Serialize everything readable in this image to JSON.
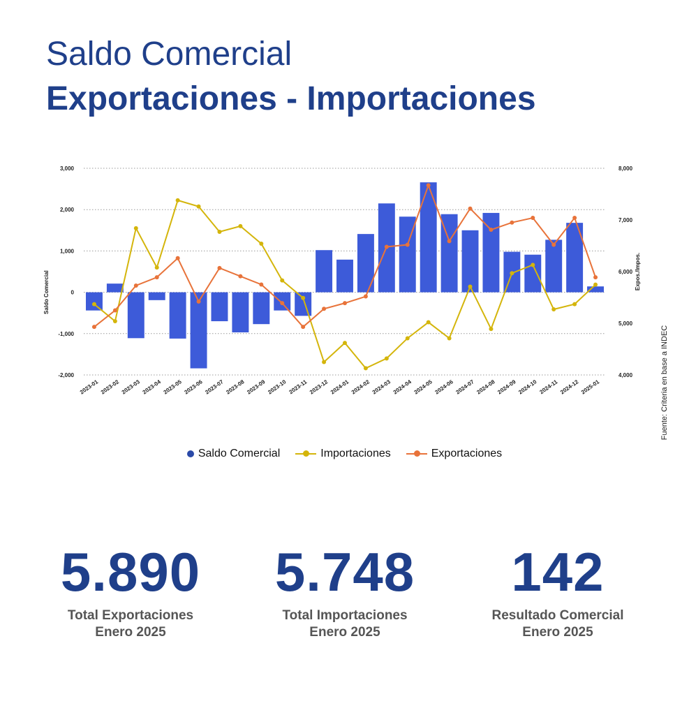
{
  "header": {
    "title_line1": "Saldo Comercial",
    "title_line2": "Exportaciones - Importaciones"
  },
  "source_note": "Fuente: Criteria en base a INDEC",
  "colors": {
    "title": "#1f3f8a",
    "bars": "#3d5bd9",
    "importaciones": "#d4b50b",
    "exportaciones": "#e8733a",
    "grid": "#999999"
  },
  "legend": {
    "saldo": "Saldo Comercial",
    "importaciones": "Importaciones",
    "exportaciones": "Exportaciones"
  },
  "chart_data": {
    "type": "bar",
    "categories": [
      "2023-01",
      "2023-02",
      "2023-03",
      "2023-04",
      "2023-05",
      "2023-06",
      "2023-07",
      "2023-08",
      "2023-09",
      "2023-10",
      "2023-11",
      "2023-12",
      "2024-01",
      "2024-02",
      "2024-03",
      "2024-04",
      "2024-05",
      "2024-06",
      "2024-07",
      "2024-08",
      "2024-09",
      "2024-10",
      "2024-11",
      "2024-12",
      "2025-01"
    ],
    "series": [
      {
        "name": "Saldo Comercial",
        "type": "bar",
        "axis": "left",
        "values": [
          -440,
          210,
          -1110,
          -190,
          -1120,
          -1840,
          -700,
          -970,
          -770,
          -440,
          -570,
          1020,
          790,
          1410,
          2150,
          1830,
          2660,
          1890,
          1500,
          1920,
          980,
          910,
          1270,
          1680,
          142
        ]
      },
      {
        "name": "Importaciones",
        "type": "line",
        "axis": "right",
        "values": [
          5370,
          5040,
          6840,
          6080,
          7380,
          7260,
          6770,
          6880,
          6540,
          5830,
          5490,
          4250,
          4620,
          4130,
          4320,
          4710,
          5020,
          4710,
          5710,
          4890,
          5970,
          6130,
          5270,
          5370,
          5748
        ]
      },
      {
        "name": "Exportaciones",
        "type": "line",
        "axis": "right",
        "values": [
          4930,
          5250,
          5730,
          5890,
          6260,
          5420,
          6070,
          5910,
          5750,
          5390,
          4930,
          5280,
          5390,
          5520,
          6480,
          6520,
          7670,
          6590,
          7220,
          6810,
          6950,
          7040,
          6520,
          7040,
          5890
        ]
      }
    ],
    "ylabel": "Saldo Comercial",
    "ylim": [
      -2000,
      3000
    ],
    "yticks": [
      "-2,000",
      "-1,000",
      "0",
      "1,000",
      "2,000",
      "3,000"
    ],
    "y2label": "Expos./Impos.",
    "y2lim": [
      4000,
      8000
    ],
    "y2ticks": [
      "4,000",
      "5,000",
      "6,000",
      "7,000",
      "8,000"
    ],
    "grid": true,
    "legend_position": "bottom"
  },
  "stats": [
    {
      "value": "5.890",
      "label": "Total Exportaciones",
      "sub": "Enero 2025"
    },
    {
      "value": "5.748",
      "label": "Total Importaciones",
      "sub": "Enero 2025"
    },
    {
      "value": "142",
      "label": "Resultado Comercial",
      "sub": "Enero 2025"
    }
  ]
}
